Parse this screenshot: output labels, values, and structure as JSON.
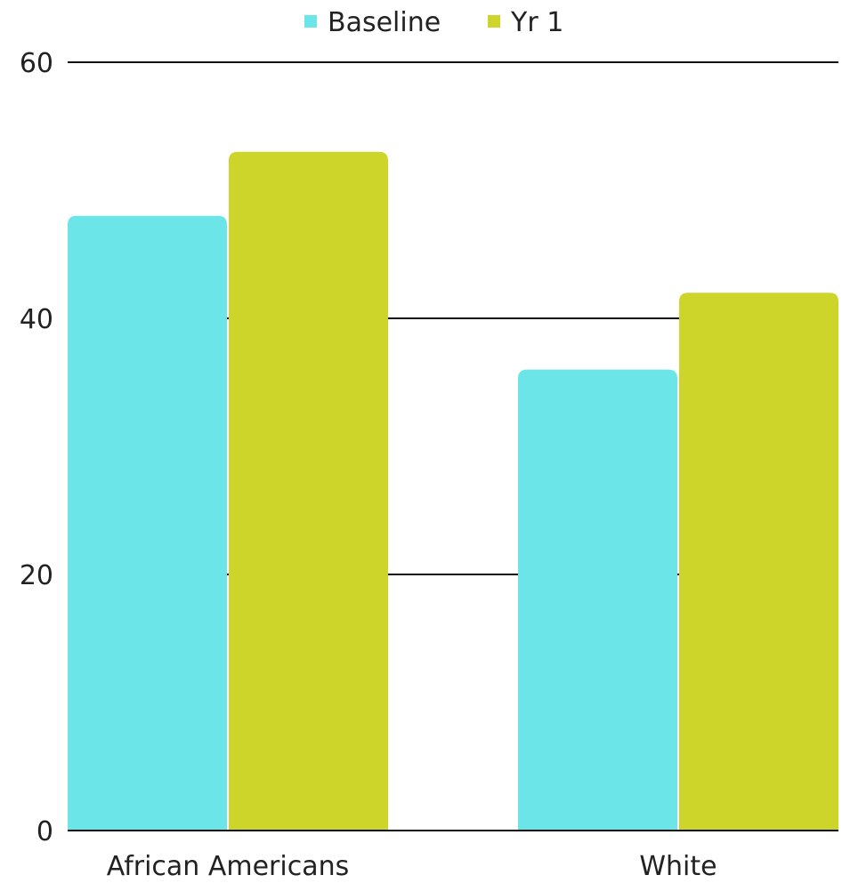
{
  "chart_data": {
    "type": "bar",
    "categories": [
      "African Americans",
      "White"
    ],
    "series": [
      {
        "name": "Baseline",
        "values": [
          48,
          36
        ],
        "color": "#6ce5e8"
      },
      {
        "name": "Yr 1",
        "values": [
          53,
          42
        ],
        "color": "#cdd42a"
      }
    ],
    "ylim": [
      0,
      60
    ],
    "yticks": [
      0,
      20,
      40,
      60
    ],
    "grid": true,
    "legend": "top-center"
  }
}
